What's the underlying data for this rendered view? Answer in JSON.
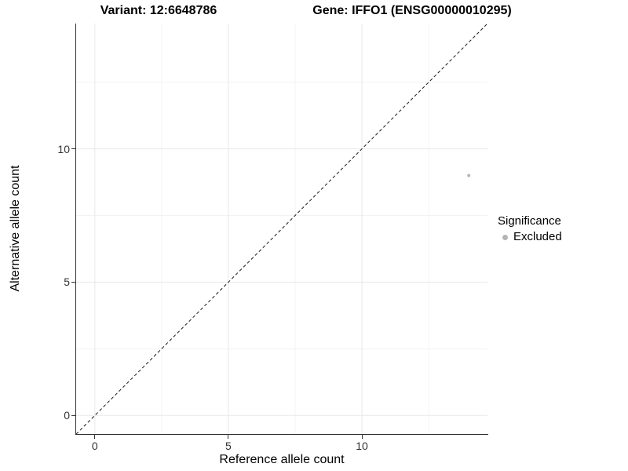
{
  "chart_data": {
    "type": "scatter",
    "variant_title": "Variant: 12:6648786",
    "gene_title": "Gene: IFFO1 (ENSG00000010295)",
    "xlabel": "Reference allele count",
    "ylabel": "Alternative allele count",
    "xlim": [
      -0.7,
      14.7
    ],
    "ylim": [
      -0.7,
      14.7
    ],
    "x_ticks": [
      0,
      5,
      10
    ],
    "y_ticks": [
      0,
      5,
      10
    ],
    "x_minor_ticks": [
      2.5,
      7.5,
      12.5
    ],
    "y_minor_ticks": [
      2.5,
      7.5,
      12.5
    ],
    "grid": true,
    "legend_position": "right",
    "legend_title": "Significance",
    "series": [
      {
        "name": "Excluded",
        "color": "#b5b5b5",
        "points": [
          {
            "x": 14,
            "y": 9
          }
        ]
      }
    ],
    "reference_line": {
      "type": "identity",
      "equation": "y = x",
      "style": "dashed",
      "color": "#1a1a1a"
    }
  },
  "colors": {
    "background": "#ffffff",
    "axis_line": "#333333",
    "tick_label": "#333333",
    "major_grid": "#e8e8e8",
    "minor_grid": "#f3f3f3",
    "point": "#b5b5b5"
  }
}
